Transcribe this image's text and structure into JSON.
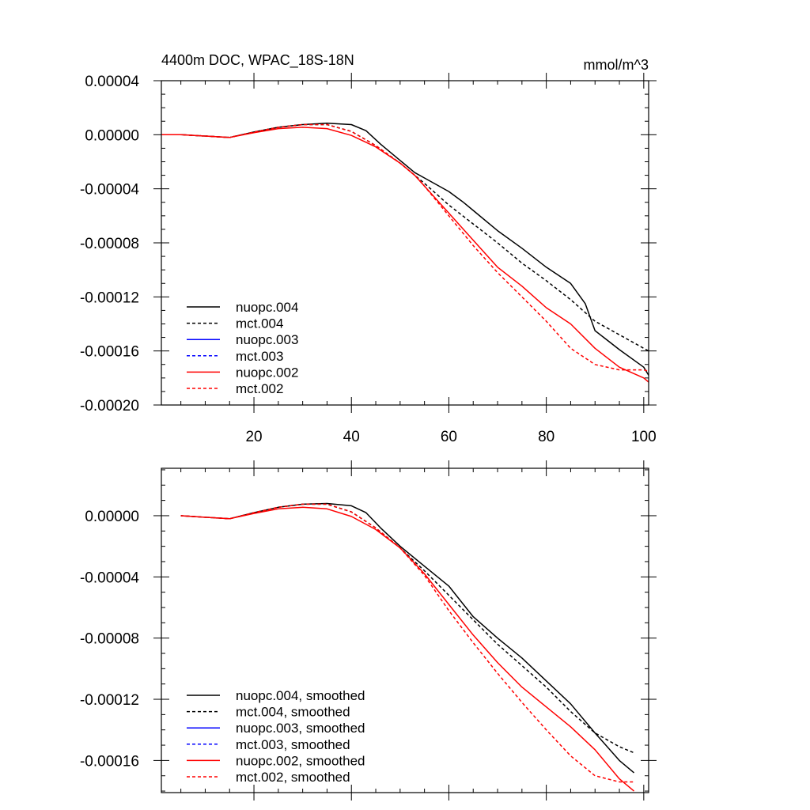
{
  "chart_data": [
    {
      "type": "line",
      "title": "4400m DOC, WPAC_18S-18N",
      "units": "mmol/m^3",
      "xlabel": "",
      "ylabel": "",
      "xlim": [
        1,
        101
      ],
      "ylim": [
        -0.0002,
        4e-05
      ],
      "xticks": [
        20,
        40,
        60,
        80,
        100
      ],
      "xtick_labels": [
        "20",
        "40",
        "60",
        "80",
        "100"
      ],
      "yticks": [
        4e-05,
        0.0,
        -4e-05,
        -8e-05,
        -0.00012,
        -0.00016,
        -0.0002
      ],
      "ytick_labels": [
        "0.00004",
        "0.00000",
        "-0.00004",
        "-0.00008",
        "-0.00012",
        "-0.00016",
        "-0.00020"
      ],
      "legend_position": "bottom-left",
      "series": [
        {
          "name": "nuopc.004",
          "color": "#000000",
          "dash": "solid",
          "x": [
            1,
            5,
            10,
            15,
            20,
            25,
            30,
            35,
            40,
            43,
            46,
            50,
            53,
            55,
            60,
            63,
            65,
            70,
            75,
            80,
            85,
            88,
            90,
            95,
            100,
            101
          ],
          "y": [
            0,
            0,
            -1e-06,
            -2e-06,
            2e-06,
            5.5e-06,
            7.5e-06,
            8.5e-06,
            7.5e-06,
            3e-06,
            -7e-06,
            -1.9e-05,
            -2.8e-05,
            -3.2e-05,
            -4.2e-05,
            -5e-05,
            -5.6e-05,
            -7.1e-05,
            -8.4e-05,
            -9.8e-05,
            -0.00011,
            -0.000125,
            -0.000145,
            -0.000159,
            -0.000172,
            -0.000178
          ]
        },
        {
          "name": "mct.004",
          "color": "#000000",
          "dash": "dashed",
          "x": [
            1,
            5,
            10,
            15,
            20,
            25,
            30,
            35,
            40,
            45,
            50,
            53,
            55,
            60,
            65,
            70,
            75,
            80,
            85,
            90,
            95,
            100,
            101
          ],
          "y": [
            0,
            0,
            -1e-06,
            -2e-06,
            2e-06,
            5.5e-06,
            7.5e-06,
            7.5e-06,
            2.5e-06,
            -8e-06,
            -2.1e-05,
            -3e-05,
            -3.6e-05,
            -5.2e-05,
            -6.6e-05,
            -8e-05,
            -9.5e-05,
            -0.000108,
            -0.000122,
            -0.000138,
            -0.000148,
            -0.000158,
            -0.00016
          ]
        },
        {
          "name": "nuopc.003",
          "color": "#0000ff",
          "dash": "solid",
          "x": [],
          "y": []
        },
        {
          "name": "mct.003",
          "color": "#0000ff",
          "dash": "dashed",
          "x": [],
          "y": []
        },
        {
          "name": "nuopc.002",
          "color": "#ff0000",
          "dash": "solid",
          "x": [
            1,
            5,
            10,
            15,
            20,
            25,
            30,
            35,
            40,
            45,
            50,
            53,
            55,
            60,
            65,
            70,
            75,
            80,
            85,
            90,
            95,
            100,
            101
          ],
          "y": [
            0,
            0,
            -1e-06,
            -2e-06,
            1.5e-06,
            4.5e-06,
            5.5e-06,
            4.5e-06,
            -5e-07,
            -9e-06,
            -2.1e-05,
            -3e-05,
            -3.8e-05,
            -5.8e-05,
            -7.8e-05,
            -9.8e-05,
            -0.000112,
            -0.000128,
            -0.00014,
            -0.000158,
            -0.000172,
            -0.00018,
            -0.000183
          ]
        },
        {
          "name": "mct.002",
          "color": "#ff0000",
          "dash": "dashed",
          "x": [
            1,
            5,
            10,
            15,
            20,
            25,
            30,
            35,
            40,
            45,
            50,
            53,
            55,
            60,
            65,
            70,
            75,
            80,
            85,
            90,
            95,
            100,
            101
          ],
          "y": [
            0,
            0,
            -1e-06,
            -2e-06,
            2e-06,
            5.5e-06,
            7.5e-06,
            7.5e-06,
            2.5e-06,
            -8e-06,
            -2.1e-05,
            -3e-05,
            -3.8e-05,
            -6e-05,
            -8.2e-05,
            -0.000102,
            -0.00012,
            -0.000138,
            -0.000158,
            -0.00017,
            -0.000174,
            -0.000174,
            -0.000175
          ]
        }
      ]
    },
    {
      "type": "line",
      "title": "",
      "xlabel": "",
      "ylabel": "",
      "xlim": [
        1,
        101
      ],
      "ylim": [
        -0.000181,
        3.1e-05
      ],
      "xticks": [
        20,
        40,
        60,
        80,
        100
      ],
      "xtick_labels": [
        "",
        "",
        "",
        "",
        ""
      ],
      "yticks": [
        0.0,
        -4e-05,
        -8e-05,
        -0.00012,
        -0.00016
      ],
      "ytick_labels": [
        "0.00000",
        "-0.00004",
        "-0.00008",
        "-0.00012",
        "-0.00016"
      ],
      "legend_position": "bottom-left",
      "series": [
        {
          "name": "nuopc.004, smoothed",
          "color": "#000000",
          "dash": "solid",
          "x": [
            5,
            10,
            15,
            20,
            25,
            30,
            35,
            40,
            43,
            46,
            50,
            55,
            60,
            65,
            70,
            75,
            80,
            85,
            90,
            95,
            98
          ],
          "y": [
            0,
            -1e-06,
            -2e-06,
            2e-06,
            5.5e-06,
            7.5e-06,
            8e-06,
            6.5e-06,
            2e-06,
            -8e-06,
            -2e-05,
            -3.3e-05,
            -4.6e-05,
            -6.6e-05,
            -8e-05,
            -9.3e-05,
            -0.000108,
            -0.000123,
            -0.000142,
            -0.00016,
            -0.000168
          ]
        },
        {
          "name": "mct.004, smoothed",
          "color": "#000000",
          "dash": "dashed",
          "x": [
            5,
            10,
            15,
            20,
            25,
            30,
            35,
            40,
            45,
            50,
            55,
            60,
            65,
            70,
            75,
            80,
            85,
            90,
            95,
            98
          ],
          "y": [
            0,
            -1e-06,
            -2e-06,
            2e-06,
            5.5e-06,
            7.5e-06,
            7.5e-06,
            2.5e-06,
            -8e-06,
            -2.1e-05,
            -3.6e-05,
            -5.2e-05,
            -6.8e-05,
            -8.4e-05,
            -9.8e-05,
            -0.000112,
            -0.000128,
            -0.000142,
            -0.000151,
            -0.000155
          ]
        },
        {
          "name": "nuopc.003, smoothed",
          "color": "#0000ff",
          "dash": "solid",
          "x": [],
          "y": []
        },
        {
          "name": "mct.003, smoothed",
          "color": "#0000ff",
          "dash": "dashed",
          "x": [],
          "y": []
        },
        {
          "name": "nuopc.002, smoothed",
          "color": "#ff0000",
          "dash": "solid",
          "x": [
            5,
            10,
            15,
            20,
            25,
            30,
            35,
            40,
            45,
            50,
            55,
            60,
            65,
            70,
            75,
            80,
            85,
            90,
            95,
            98
          ],
          "y": [
            0,
            -1e-06,
            -2e-06,
            1.5e-06,
            4.5e-06,
            5.5e-06,
            4.5e-06,
            -5e-07,
            -9e-06,
            -2.1e-05,
            -3.8e-05,
            -5.8e-05,
            -7.8e-05,
            -9.6e-05,
            -0.000112,
            -0.000125,
            -0.000138,
            -0.000153,
            -0.000172,
            -0.00018
          ]
        },
        {
          "name": "mct.002, smoothed",
          "color": "#ff0000",
          "dash": "dashed",
          "x": [
            5,
            10,
            15,
            20,
            25,
            30,
            35,
            40,
            45,
            50,
            55,
            60,
            65,
            70,
            75,
            80,
            85,
            90,
            95,
            98
          ],
          "y": [
            0,
            -1e-06,
            -2e-06,
            2e-06,
            5.5e-06,
            7.5e-06,
            7.5e-06,
            2.5e-06,
            -8e-06,
            -2.1e-05,
            -3.9e-05,
            -6.2e-05,
            -8.3e-05,
            -0.000103,
            -0.000122,
            -0.00014,
            -0.000157,
            -0.00017,
            -0.000174,
            -0.000174
          ]
        }
      ]
    }
  ]
}
